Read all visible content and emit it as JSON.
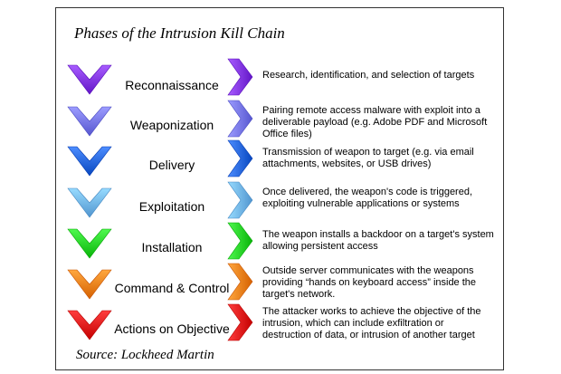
{
  "title": "Phases of the Intrusion Kill Chain",
  "source": "Source: Lockheed Martin",
  "phases": [
    {
      "label": "Reconnaissance",
      "color": "#7b2fe0",
      "description_lines": [
        "Research, identification, and selection of targets"
      ]
    },
    {
      "label": "Weaponization",
      "color": "#6f6fe8",
      "description_lines": [
        "Pairing remote access malware with exploit into a",
        "deliverable payload (e.g. Adobe PDF and Microsoft",
        "Office files)"
      ]
    },
    {
      "label": "Delivery",
      "color": "#2060d8",
      "description_lines": [
        "Transmission of weapon to target (e.g. via email",
        "attachments, websites, or USB drives)"
      ]
    },
    {
      "label": "Exploitation",
      "color": "#6aaee8",
      "description_lines": [
        "Once delivered, the weapon's code is triggered,",
        "exploiting vulnerable applications or systems"
      ]
    },
    {
      "label": "Installation",
      "color": "#22cc22",
      "description_lines": [
        "The weapon installs a backdoor on a target's system",
        "allowing persistent access"
      ]
    },
    {
      "label": "Command  & Control",
      "color": "#ee7a12",
      "description_lines": [
        "Outside server communicates with the weapons",
        "providing “hands on keyboard access” inside the",
        "target's network."
      ]
    },
    {
      "label": "Actions on Objective",
      "color": "#dd1111",
      "description_lines": [
        "The attacker works to achieve the objective of the",
        "intrusion, which can include exfiltration or",
        "destruction of data, or intrusion of another target"
      ]
    }
  ]
}
